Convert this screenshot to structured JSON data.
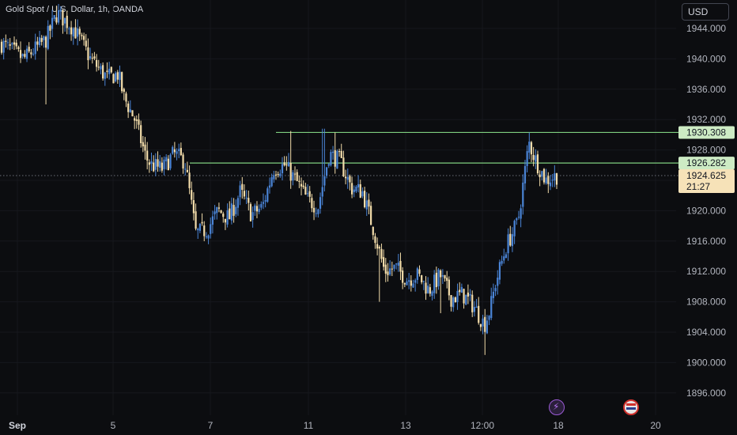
{
  "header": {
    "title": "Gold Spot / U.S. Dollar, 1h, OANDA",
    "currency_button": "USD"
  },
  "icons": {
    "event_marker_1": "lightning-icon",
    "event_marker_2": "us-flag-icon"
  },
  "colors": {
    "background": "#0c0d10",
    "candle_up": "#4a84d6",
    "candle_down": "#f2dcaa",
    "resistance_line": "#7fcf7f",
    "resistance_label_bg": "#cdebc4",
    "current_price_label_bg": "#f6e2b8",
    "axis_text": "#b2b5be"
  },
  "chart_data": {
    "type": "candlestick",
    "timeframe": "1h",
    "price_axis": {
      "ticks": [
        "1944.000",
        "1940.000",
        "1936.000",
        "1932.000",
        "1928.000",
        "1924.000",
        "1920.000",
        "1916.000",
        "1912.000",
        "1908.000",
        "1904.000",
        "1900.000",
        "1896.000"
      ],
      "ylim": [
        1894,
        1947
      ]
    },
    "time_axis": {
      "ticks": [
        "Sep",
        "5",
        "7",
        "11",
        "13",
        "12:00",
        "18",
        "20"
      ]
    },
    "horizontal_levels": [
      {
        "price": 1930.308,
        "label": "1930.308"
      },
      {
        "price": 1926.282,
        "label": "1926.282"
      }
    ],
    "current_price": {
      "price": 1924.625,
      "label": "1924.625",
      "countdown": "21:27"
    },
    "close_path": [
      [
        0,
        1942.0
      ],
      [
        4,
        1940.0
      ],
      [
        8,
        1942.5
      ],
      [
        10,
        1946.0
      ],
      [
        13,
        1944.0
      ],
      [
        16,
        1940.0
      ],
      [
        19,
        1937.5
      ],
      [
        21,
        1938.0
      ],
      [
        22,
        1935.0
      ],
      [
        24,
        1932.0
      ],
      [
        26,
        1927.0
      ],
      [
        27,
        1926.0
      ],
      [
        29,
        1925.5
      ],
      [
        31,
        1927.5
      ],
      [
        33,
        1926.5
      ],
      [
        35,
        1917.0
      ],
      [
        37,
        1917.5
      ],
      [
        39,
        1920.0
      ],
      [
        41,
        1919.0
      ],
      [
        43,
        1922.5
      ],
      [
        45,
        1919.5
      ],
      [
        47,
        1920.5
      ],
      [
        49,
        1925.5
      ],
      [
        51,
        1926.0
      ],
      [
        53,
        1924.0
      ],
      [
        55,
        1921.5
      ],
      [
        57,
        1920.5
      ],
      [
        59,
        1927.5
      ],
      [
        61,
        1926.5
      ],
      [
        63,
        1923.0
      ],
      [
        65,
        1922.5
      ],
      [
        67,
        1917.5
      ],
      [
        69,
        1912.0
      ],
      [
        71,
        1912.5
      ],
      [
        73,
        1911.0
      ],
      [
        75,
        1911.5
      ],
      [
        77,
        1909.5
      ],
      [
        79,
        1911.5
      ],
      [
        81,
        1908.5
      ],
      [
        83,
        1909.0
      ],
      [
        85,
        1907.5
      ],
      [
        87,
        1905.0
      ],
      [
        88,
        1907.0
      ],
      [
        89,
        1910.5
      ],
      [
        91,
        1915.5
      ],
      [
        93,
        1918.5
      ],
      [
        95,
        1929.0
      ],
      [
        96,
        1927.0
      ],
      [
        98,
        1924.0
      ],
      [
        100,
        1924.625
      ]
    ],
    "spikes": [
      [
        10,
        1947.0,
        null
      ],
      [
        8,
        null,
        1934.0
      ],
      [
        52,
        1930.5,
        null
      ],
      [
        58,
        1930.8,
        null
      ],
      [
        60,
        1930.3,
        null
      ],
      [
        68,
        null,
        1908.0
      ],
      [
        79,
        null,
        1906.5
      ],
      [
        87,
        null,
        1901.0
      ],
      [
        95,
        1930.3,
        null
      ]
    ]
  }
}
